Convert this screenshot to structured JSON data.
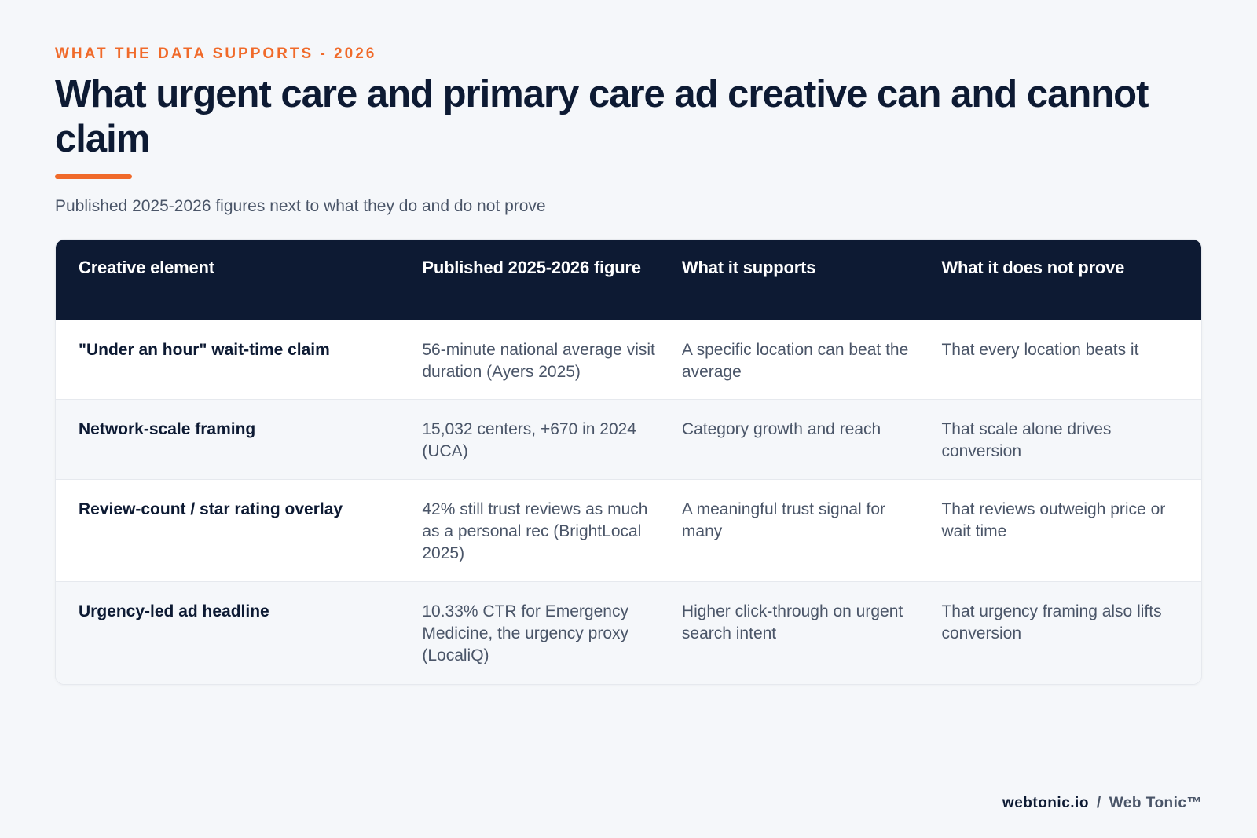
{
  "eyebrow": "WHAT THE DATA SUPPORTS - 2026",
  "title": "What urgent care and primary care ad creative can and cannot claim",
  "subtitle": "Published 2025-2026 figures next to what they do and do not prove",
  "accent_color": "#f06a2a",
  "header_color": "#0d1a33",
  "table": {
    "headers": [
      "Creative element",
      "Published 2025-2026 figure",
      "What it supports",
      "What it does not prove"
    ],
    "rows": [
      {
        "element": "\"Under an hour\" wait-time claim",
        "figure": "56-minute national average visit duration (Ayers 2025)",
        "supports": "A specific location can beat the average",
        "not_prove": "That every location beats it"
      },
      {
        "element": "Network-scale framing",
        "figure": "15,032 centers, +670 in 2024 (UCA)",
        "supports": "Category growth and reach",
        "not_prove": "That scale alone drives conversion"
      },
      {
        "element": "Review-count / star rating overlay",
        "figure": "42% still trust reviews as much as a personal rec (BrightLocal 2025)",
        "supports": "A meaningful trust signal for many",
        "not_prove": "That reviews outweigh price or wait time"
      },
      {
        "element": "Urgency-led ad headline",
        "figure": "10.33% CTR for Emergency Medicine, the urgency proxy (LocaliQ)",
        "supports": "Higher click-through on urgent search intent",
        "not_prove": "That urgency framing also lifts conversion"
      }
    ]
  },
  "footer": {
    "domain": "webtonic.io",
    "separator": "/",
    "brand": "Web Tonic™"
  }
}
